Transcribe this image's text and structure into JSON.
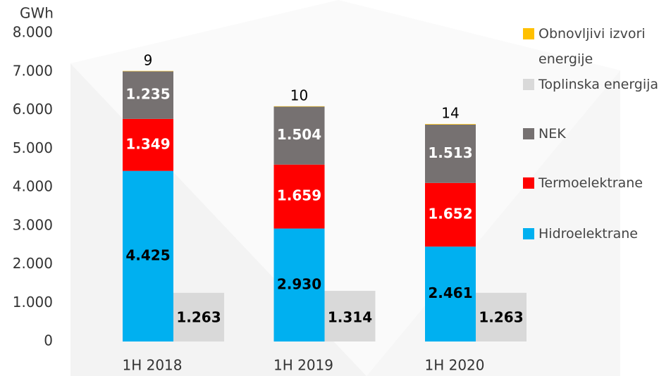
{
  "chart_data": {
    "type": "bar",
    "y_unit": "GWh",
    "categories": [
      "1H 2018",
      "1H 2019",
      "1H 2020"
    ],
    "series": [
      {
        "name": "Obnovljivi izvori energije",
        "color": "#ffc000",
        "values": [
          9,
          10,
          14
        ],
        "separate": false
      },
      {
        "name": "Toplinska energija",
        "color": "#d9d9d9",
        "values": [
          1263,
          1314,
          1263
        ],
        "value_labels": [
          "1.263",
          "1.314",
          "1.263"
        ],
        "separate": true
      },
      {
        "name": "NEK",
        "color": "#767171",
        "values": [
          1235,
          1504,
          1513
        ],
        "value_labels": [
          "1.235",
          "1.504",
          "1.513"
        ],
        "separate": false
      },
      {
        "name": "Termoelektrane",
        "color": "#ff0000",
        "values": [
          1349,
          1659,
          1652
        ],
        "value_labels": [
          "1.349",
          "1.659",
          "1.652"
        ],
        "separate": false
      },
      {
        "name": "Hidroelektrane",
        "color": "#00b0f0",
        "values": [
          4425,
          2930,
          2461
        ],
        "value_labels": [
          "4.425",
          "2.930",
          "2.461"
        ],
        "separate": false
      }
    ],
    "ylim": [
      0,
      8000
    ],
    "yticks": [
      0,
      {
        "value": 1000,
        "label": "1.000"
      },
      {
        "value": 2000,
        "label": "2.000"
      },
      {
        "value": 3000,
        "label": "3.000"
      },
      {
        "value": 4000,
        "label": "4.000"
      },
      {
        "value": 5000,
        "label": "5.000"
      },
      {
        "value": 6000,
        "label": "6.000"
      },
      {
        "value": 7000,
        "label": "7.000"
      },
      {
        "value": 8000,
        "label": "8.000"
      }
    ],
    "grid": false,
    "legend": "right"
  }
}
